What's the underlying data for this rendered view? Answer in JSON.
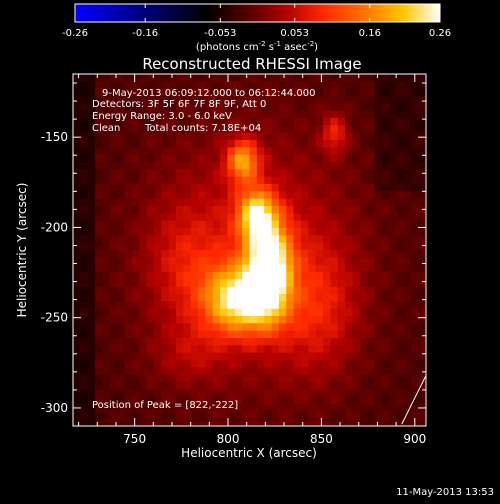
{
  "chart_data": {
    "type": "heatmap",
    "title": "Reconstructed RHESSI Image",
    "xlabel": "Heliocentric X (arcsec)",
    "ylabel": "Heliocentric Y (arcsec)",
    "xlim": [
      717,
      906
    ],
    "ylim": [
      -310,
      -115
    ],
    "x_ticks": [
      750,
      800,
      850,
      900
    ],
    "y_ticks": [
      -150,
      -200,
      -250,
      -300
    ],
    "colorbar": {
      "min": -0.26,
      "max": 0.26,
      "ticks": [
        "-0.26",
        "-0.16",
        "-0.053",
        "0.053",
        "0.16",
        "0.26"
      ],
      "tick_values": [
        -0.26,
        -0.16,
        -0.053,
        0.053,
        0.16,
        0.26
      ],
      "unit_prefix": "(photons cm",
      "unit_exp1": "-2",
      "unit_mid": " s",
      "unit_exp2": "-1",
      "unit_mid2": " asec",
      "unit_exp3": "-2",
      "unit_suffix": ")",
      "colormap": [
        "#0000ff",
        "#000000",
        "#5a0000",
        "#b40000",
        "#ff2800",
        "#ff7800",
        "#ffc800",
        "#ffffff"
      ]
    },
    "annotations": {
      "time_range": "9-May-2013 06:09:12.000 to 06:12:44.000",
      "detectors": "Detectors: 3F 5F 6F 7F 8F 9F, Att 0",
      "energy": "Energy Range: 3.0 - 6.0 keV",
      "method": "Clean",
      "counts": "Total counts: 7.18E+04",
      "peak": "Position of Peak = [822,-222]"
    },
    "peak": {
      "x": 822,
      "y": -222
    },
    "sources": [
      {
        "x": 822,
        "y": -222,
        "sx": 8,
        "sy": 18,
        "amp": 0.26
      },
      {
        "x": 806,
        "y": -240,
        "sx": 13,
        "sy": 13,
        "amp": 0.22
      },
      {
        "x": 815,
        "y": -193,
        "sx": 7,
        "sy": 10,
        "amp": 0.19
      },
      {
        "x": 808,
        "y": -163,
        "sx": 6,
        "sy": 8,
        "amp": 0.17
      },
      {
        "x": 857,
        "y": -148,
        "sx": 5,
        "sy": 8,
        "amp": 0.09
      },
      {
        "x": 812,
        "y": -215,
        "sx": 38,
        "sy": 48,
        "amp": 0.08
      },
      {
        "x": 848,
        "y": -245,
        "sx": 16,
        "sy": 26,
        "amp": 0.07
      },
      {
        "x": 776,
        "y": -220,
        "sx": 14,
        "sy": 22,
        "amp": 0.05
      },
      {
        "x": 780,
        "y": -270,
        "sx": 14,
        "sy": 12,
        "amp": 0.04
      }
    ],
    "limb": {
      "x1": 893,
      "y1": -309,
      "x2": 906,
      "y2": -282
    }
  },
  "footer": {
    "date": "11-May-2013 13:53"
  }
}
